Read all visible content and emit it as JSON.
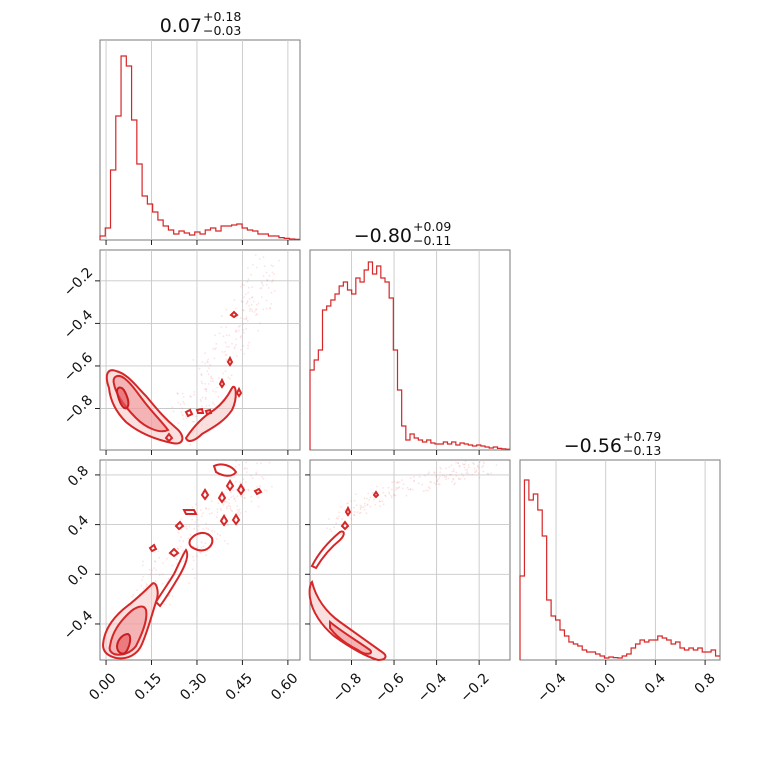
{
  "chart_data": {
    "type": "corner",
    "color": "#d62728",
    "parameters": [
      {
        "title_value": "0.07",
        "title_plus": "+0.18",
        "title_minus": "−0.03",
        "range": [
          -0.02,
          0.64
        ],
        "ticks": [
          0.0,
          0.15,
          0.3,
          0.45,
          0.6
        ],
        "tick_labels": [
          "0.00",
          "0.15",
          "0.30",
          "0.45",
          "0.60"
        ],
        "hist": [
          0.02,
          0.06,
          0.35,
          0.62,
          0.92,
          0.87,
          0.6,
          0.38,
          0.22,
          0.18,
          0.14,
          0.1,
          0.07,
          0.05,
          0.03,
          0.045,
          0.035,
          0.025,
          0.04,
          0.03,
          0.05,
          0.06,
          0.045,
          0.07,
          0.07,
          0.075,
          0.08,
          0.06,
          0.05,
          0.045,
          0.03,
          0.03,
          0.02,
          0.02,
          0.012,
          0.008,
          0.005,
          0.003
        ]
      },
      {
        "title_value": "−0.80",
        "title_plus": "+0.09",
        "title_minus": "−0.11",
        "range": [
          -0.995,
          -0.055
        ],
        "ticks": [
          -0.8,
          -0.6,
          -0.4,
          -0.2
        ],
        "tick_labels": [
          "−0.8",
          "−0.6",
          "−0.4",
          "−0.2"
        ],
        "hist": [
          0.4,
          0.45,
          0.5,
          0.7,
          0.72,
          0.75,
          0.78,
          0.82,
          0.84,
          0.8,
          0.78,
          0.86,
          0.84,
          0.9,
          0.94,
          0.88,
          0.92,
          0.86,
          0.84,
          0.76,
          0.5,
          0.3,
          0.12,
          0.05,
          0.08,
          0.06,
          0.05,
          0.04,
          0.05,
          0.035,
          0.03,
          0.03,
          0.04,
          0.03,
          0.04,
          0.025,
          0.035,
          0.03,
          0.025,
          0.02,
          0.025,
          0.02,
          0.015,
          0.01,
          0.015,
          0.008,
          0.006,
          0.004
        ]
      },
      {
        "title_value": "−0.56",
        "title_plus": "+0.79",
        "title_minus": "−0.13",
        "range": [
          -0.69,
          0.92
        ],
        "ticks": [
          -0.4,
          0.0,
          0.4,
          0.8
        ],
        "tick_labels": [
          "−0.4",
          "0.0",
          "0.4",
          "0.8"
        ],
        "hist": [
          0.42,
          0.9,
          0.8,
          0.83,
          0.75,
          0.62,
          0.3,
          0.22,
          0.2,
          0.15,
          0.12,
          0.09,
          0.08,
          0.07,
          0.05,
          0.04,
          0.04,
          0.03,
          0.02,
          0.01,
          0.015,
          0.012,
          0.01,
          0.02,
          0.03,
          0.06,
          0.08,
          0.1,
          0.09,
          0.1,
          0.1,
          0.12,
          0.11,
          0.1,
          0.08,
          0.09,
          0.06,
          0.05,
          0.06,
          0.05,
          0.06,
          0.04,
          0.04,
          0.05,
          0.02
        ]
      }
    ]
  }
}
